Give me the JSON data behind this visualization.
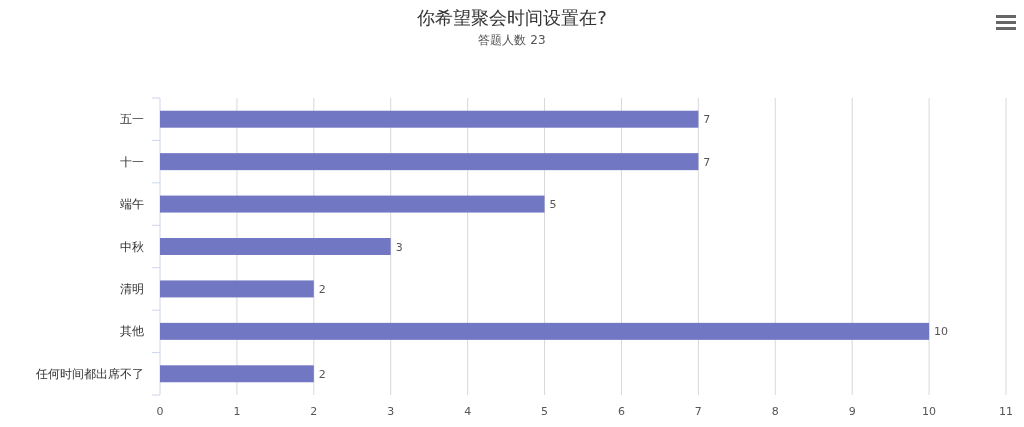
{
  "chart_data": {
    "type": "bar",
    "orientation": "horizontal",
    "title": "你希望聚会时间设置在?",
    "subtitle": "答题人数 23",
    "categories": [
      "五一",
      "十一",
      "端午",
      "中秋",
      "清明",
      "其他",
      "任何时间都出席不了"
    ],
    "values": [
      7,
      7,
      5,
      3,
      2,
      10,
      2
    ],
    "color": "#7277c4",
    "xlim": [
      0,
      11
    ],
    "xticks": [
      0,
      1,
      2,
      3,
      4,
      5,
      6,
      7,
      8,
      9,
      10,
      11
    ],
    "grid": "x",
    "data_labels": true
  }
}
